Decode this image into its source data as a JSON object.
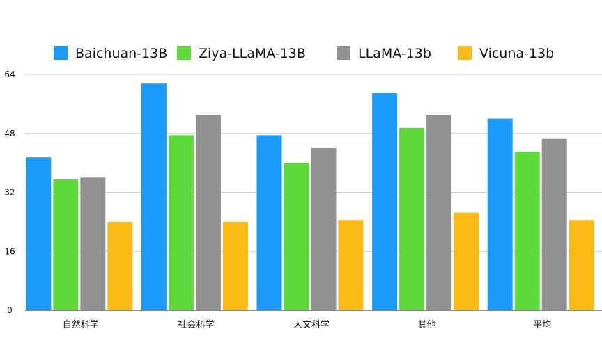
{
  "chart_data": {
    "type": "bar",
    "categories": [
      "自然科学",
      "社会科学",
      "人文科学",
      "其他",
      "平均"
    ],
    "series": [
      {
        "name": "Baichuan-13B",
        "color": "#1a9bfc",
        "values": [
          41.5,
          61.5,
          47.5,
          59,
          52
        ]
      },
      {
        "name": "Ziya-LLaMA-13B",
        "color": "#5dd93a",
        "values": [
          35.5,
          47.5,
          40,
          49.5,
          43
        ]
      },
      {
        "name": "LLaMA-13b",
        "color": "#929292",
        "values": [
          36,
          53,
          44,
          53,
          46.5
        ]
      },
      {
        "name": "Vicuna-13b",
        "color": "#fbbb14",
        "values": [
          24,
          24,
          24.5,
          26.5,
          24.5
        ]
      }
    ],
    "yticks": [
      "0",
      "16",
      "32",
      "48",
      "64"
    ],
    "ylim": [
      0,
      64
    ],
    "grid": true,
    "legend": "top"
  }
}
